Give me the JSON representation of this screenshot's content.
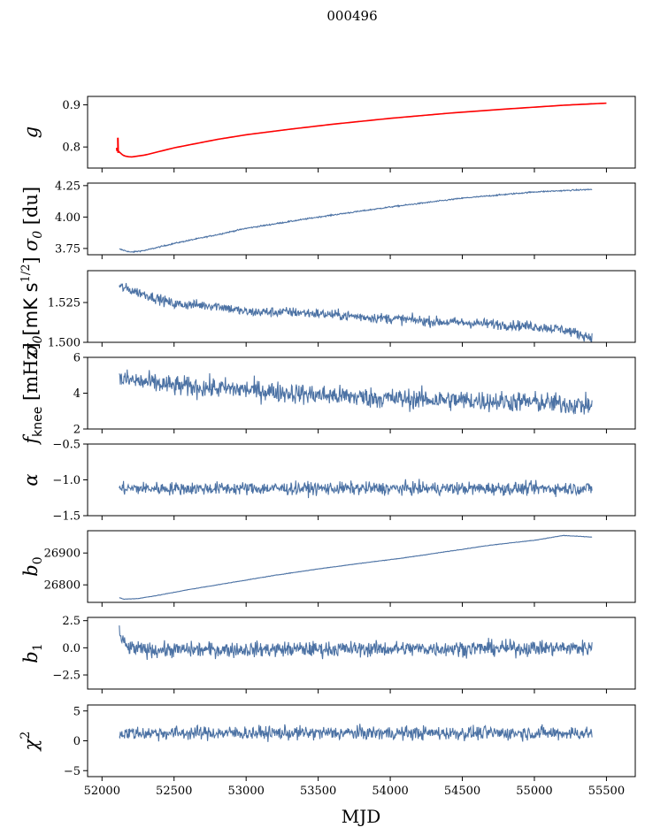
{
  "title": "000496",
  "xlabel": "MJD",
  "colors": {
    "series": "#4c72a4",
    "overlay": "#ff0000",
    "axes": "#000000"
  },
  "chart_data": [
    {
      "type": "line",
      "id": "g",
      "ylabel": "g",
      "ylim": [
        0.75,
        0.92
      ],
      "yticks": [
        0.8,
        0.9
      ],
      "ytick_labels": [
        "0.8",
        "0.9"
      ],
      "series": [
        {
          "name": "g",
          "color": "#4c72a4",
          "x": [
            52110,
            52150,
            52200,
            52300,
            52500,
            52800,
            53000,
            53300,
            53600,
            54000,
            54400,
            54800,
            55200,
            55400
          ],
          "y": [
            0.792,
            0.779,
            0.776,
            0.781,
            0.798,
            0.818,
            0.829,
            0.842,
            0.854,
            0.868,
            0.88,
            0.89,
            0.899,
            0.903
          ],
          "noise": 0.0
        },
        {
          "name": "g_fit",
          "color": "#ff0000",
          "x": [
            52100,
            52120,
            52150,
            52200,
            52300,
            52500,
            52800,
            53000,
            53300,
            53600,
            54000,
            54400,
            54800,
            55200,
            55500
          ],
          "y": [
            0.795,
            0.788,
            0.779,
            0.776,
            0.781,
            0.798,
            0.818,
            0.829,
            0.842,
            0.854,
            0.868,
            0.88,
            0.89,
            0.899,
            0.904
          ],
          "noise": 0.0
        }
      ]
    },
    {
      "type": "line",
      "id": "sigma0_du",
      "ylabel": "σ0 [du]",
      "ylim": [
        3.7,
        4.27
      ],
      "yticks": [
        3.75,
        4.0,
        4.25
      ],
      "ytick_labels": [
        "3.75",
        "4.00",
        "4.25"
      ],
      "series": [
        {
          "name": "sigma0_du",
          "color": "#4c72a4",
          "x": [
            52120,
            52200,
            52300,
            52500,
            52800,
            53000,
            53500,
            54000,
            54500,
            55000,
            55400
          ],
          "y": [
            3.745,
            3.72,
            3.735,
            3.79,
            3.86,
            3.91,
            4.0,
            4.08,
            4.15,
            4.2,
            4.22
          ],
          "noise": 0.004
        }
      ]
    },
    {
      "type": "line",
      "id": "sigma0_mk",
      "ylabel": "σ0 [mK s^1/2]",
      "ylim": [
        1.5,
        1.545
      ],
      "yticks": [
        1.5,
        1.525
      ],
      "ytick_labels": [
        "1.500",
        "1.525"
      ],
      "series": [
        {
          "name": "sigma0_mk",
          "color": "#4c72a4",
          "x": [
            52120,
            52300,
            52500,
            52800,
            53000,
            53300,
            53500,
            53800,
            54000,
            54300,
            54600,
            55000,
            55200,
            55400
          ],
          "y": [
            1.535,
            1.53,
            1.524,
            1.523,
            1.519,
            1.519,
            1.518,
            1.516,
            1.515,
            1.513,
            1.512,
            1.51,
            1.508,
            1.503
          ],
          "noise": 0.0025
        }
      ]
    },
    {
      "type": "line",
      "id": "fknee",
      "ylabel": "fknee [mHz]",
      "ylim": [
        2,
        6
      ],
      "yticks": [
        2,
        4,
        6
      ],
      "ytick_labels": [
        "2",
        "4",
        "6"
      ],
      "series": [
        {
          "name": "fknee",
          "color": "#4c72a4",
          "x": [
            52120,
            52500,
            53000,
            53500,
            54000,
            54500,
            55000,
            55400
          ],
          "y": [
            4.8,
            4.4,
            4.2,
            3.9,
            3.7,
            3.6,
            3.5,
            3.3
          ],
          "noise": 0.45
        }
      ]
    },
    {
      "type": "line",
      "id": "alpha",
      "ylabel": "α",
      "ylim": [
        -1.5,
        -0.5
      ],
      "yticks": [
        -1.5,
        -1.0,
        -0.5
      ],
      "ytick_labels": [
        "−1.5",
        "−1.0",
        "−0.5"
      ],
      "series": [
        {
          "name": "alpha",
          "color": "#4c72a4",
          "x": [
            52120,
            55400
          ],
          "y": [
            -1.12,
            -1.12
          ],
          "noise": 0.07
        }
      ]
    },
    {
      "type": "line",
      "id": "b0",
      "ylabel": "b0",
      "ylim": [
        26745,
        26970
      ],
      "yticks": [
        26800,
        26900
      ],
      "ytick_labels": [
        "26800",
        "26900"
      ],
      "series": [
        {
          "name": "b0",
          "color": "#4c72a4",
          "x": [
            52120,
            52150,
            52250,
            52400,
            52600,
            52800,
            53000,
            53200,
            53500,
            53800,
            54100,
            54400,
            54700,
            55000,
            55200,
            55400
          ],
          "y": [
            26760,
            26755,
            26757,
            26768,
            26785,
            26800,
            26815,
            26830,
            26850,
            26868,
            26885,
            26905,
            26925,
            26940,
            26955,
            26950
          ],
          "noise": 0.6
        }
      ]
    },
    {
      "type": "line",
      "id": "b1",
      "ylabel": "b1",
      "ylim": [
        -3.8,
        2.8
      ],
      "yticks": [
        -2.5,
        0.0,
        2.5
      ],
      "ytick_labels": [
        "−2.5",
        "0.0",
        "2.5"
      ],
      "series": [
        {
          "name": "b1",
          "color": "#4c72a4",
          "x": [
            52120,
            52130,
            52180,
            52300,
            55400
          ],
          "y": [
            2.0,
            0.8,
            0.0,
            -0.2,
            0.0
          ],
          "noise": 0.55
        }
      ]
    },
    {
      "type": "line",
      "id": "chi2",
      "ylabel": "χ2",
      "ylim": [
        -6,
        6
      ],
      "yticks": [
        -5,
        0,
        5
      ],
      "ytick_labels": [
        "−5",
        "0",
        "5"
      ],
      "series": [
        {
          "name": "chi2",
          "color": "#4c72a4",
          "x": [
            52120,
            55400
          ],
          "y": [
            1.3,
            1.3
          ],
          "noise": 0.9
        }
      ]
    }
  ],
  "xaxis": {
    "xlim": [
      51900,
      55700
    ],
    "xticks": [
      52000,
      52500,
      53000,
      53500,
      54000,
      54500,
      55000,
      55500
    ],
    "xtick_labels": [
      "52000",
      "52500",
      "53000",
      "53500",
      "54000",
      "54500",
      "55000",
      "55500"
    ]
  }
}
